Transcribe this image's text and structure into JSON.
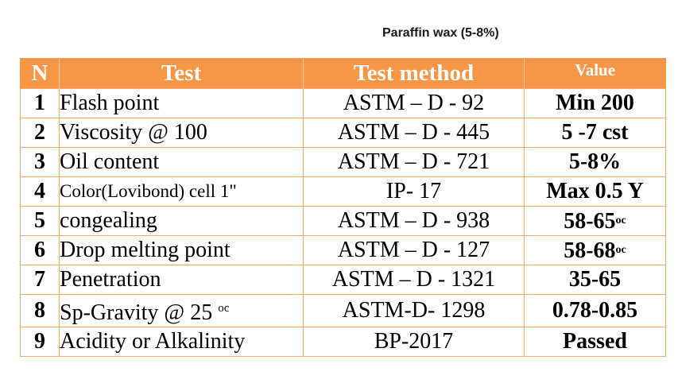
{
  "title": "Paraffin wax (5-8%)",
  "table": {
    "headers": {
      "n": "N",
      "test": "Test",
      "method": "Test method",
      "value": "Value"
    },
    "rows": [
      {
        "n": "1",
        "test": "Flash point",
        "method": "ASTM – D - 92",
        "value": "Min 200"
      },
      {
        "n": "2",
        "test": "Viscosity @ 100",
        "method": "ASTM – D - 445",
        "value": "5 -7 cst"
      },
      {
        "n": "3",
        "test": "Oil content",
        "method": "ASTM – D - 721",
        "value": "5-8%"
      },
      {
        "n": "4",
        "test": "Color(Lovibond) cell 1\"",
        "method": "IP- 17",
        "value": "Max 0.5 Y"
      },
      {
        "n": "5",
        "test": "congealing",
        "method": "ASTM – D - 938",
        "value": "58-65",
        "value_unit": "oc"
      },
      {
        "n": "6",
        "test": "Drop melting point",
        "method": "ASTM – D - 127",
        "value": "58-68",
        "value_unit": "oc"
      },
      {
        "n": "7",
        "test": "Penetration",
        "method": "ASTM – D - 1321",
        "value": "35-65"
      },
      {
        "n": "8",
        "test": "Sp-Gravity @ 25",
        "test_unit": "oc",
        "method": "ASTM-D- 1298",
        "value": "0.78-0.85"
      },
      {
        "n": "9",
        "test": "Acidity or Alkalinity",
        "method": "BP-2017",
        "value": "Passed"
      }
    ]
  },
  "colors": {
    "header_bg": "#f79646",
    "header_text": "#ffffff",
    "border": "#f7a866"
  }
}
